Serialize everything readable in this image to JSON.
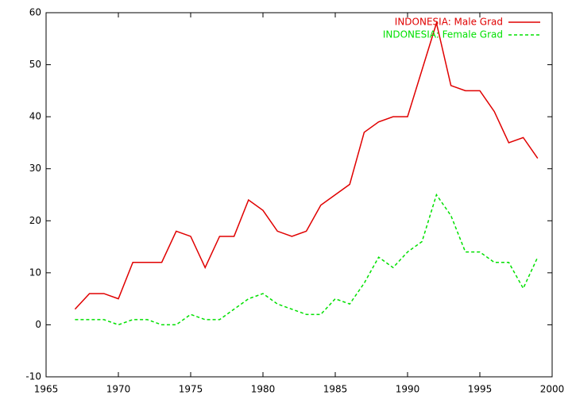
{
  "chart_data": {
    "type": "line",
    "x": [
      1967,
      1968,
      1969,
      1970,
      1971,
      1972,
      1973,
      1974,
      1975,
      1976,
      1977,
      1978,
      1979,
      1980,
      1981,
      1982,
      1983,
      1984,
      1985,
      1986,
      1987,
      1988,
      1989,
      1990,
      1991,
      1992,
      1993,
      1994,
      1995,
      1996,
      1997,
      1998,
      1999
    ],
    "series": [
      {
        "name": "INDONESIA: Male Grad",
        "color": "#e00000",
        "dash": "none",
        "values": [
          3,
          6,
          6,
          5,
          12,
          12,
          12,
          18,
          17,
          11,
          17,
          17,
          24,
          22,
          18,
          17,
          18,
          23,
          25,
          27,
          37,
          39,
          40,
          40,
          49,
          58,
          46,
          45,
          45,
          41,
          35,
          36,
          32
        ]
      },
      {
        "name": "INDONESIA: Female Grad",
        "color": "#00e000",
        "dash": "4,3",
        "values": [
          1,
          1,
          1,
          0,
          1,
          1,
          0,
          0,
          2,
          1,
          1,
          3,
          5,
          6,
          4,
          3,
          2,
          2,
          5,
          4,
          8,
          13,
          11,
          14,
          16,
          25,
          21,
          14,
          14,
          12,
          12,
          7,
          13
        ]
      }
    ],
    "xlim": [
      1965,
      2000
    ],
    "xticks": [
      1965,
      1970,
      1975,
      1980,
      1985,
      1990,
      1995,
      2000
    ],
    "ylim": [
      -10,
      60
    ],
    "yticks": [
      -10,
      0,
      10,
      20,
      30,
      40,
      50,
      60
    ],
    "legend": "upper-right"
  }
}
